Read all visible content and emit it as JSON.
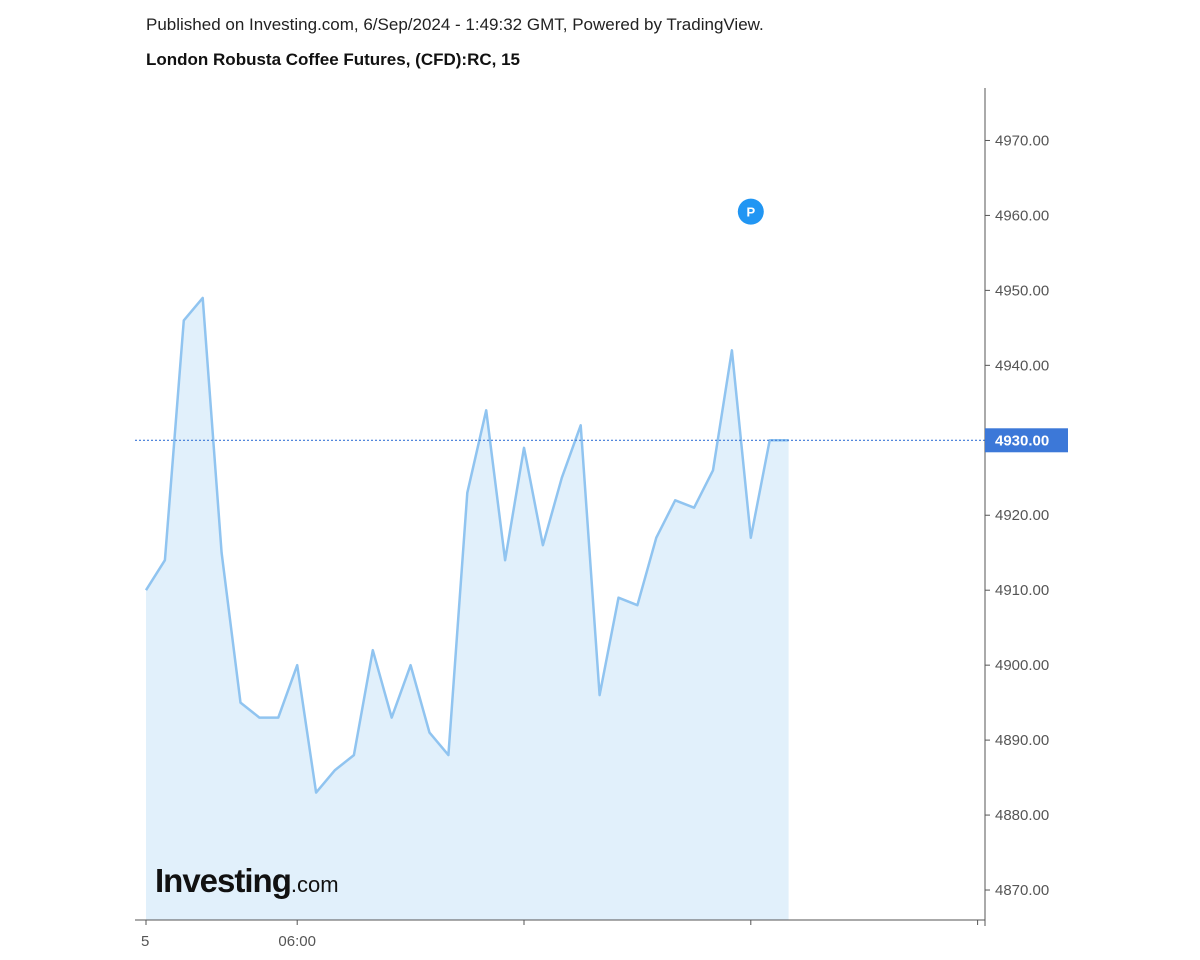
{
  "header": {
    "published": "Published on Investing.com, 6/Sep/2024 - 1:49:32 GMT, Powered by TradingView."
  },
  "logo": {
    "main": "Investing",
    "suffix": ".com"
  },
  "colors": {
    "line": "#90c4f0",
    "fill": "#e1f0fb",
    "last_price_bg": "#3c78d8",
    "marker": "#2196f3",
    "axis": "#555555"
  },
  "chart_data": {
    "type": "area",
    "title": "London Robusta Coffee Futures, (CFD):RC, 15",
    "y_ticks": [
      "4870.00",
      "4880.00",
      "4890.00",
      "4900.00",
      "4910.00",
      "4920.00",
      "4930.00",
      "4940.00",
      "4950.00",
      "4960.00",
      "4970.00"
    ],
    "ylim": [
      4866,
      4977
    ],
    "x_tick_labels": [
      {
        "index": 0,
        "label": "5"
      },
      {
        "index": 8,
        "label": "06:00"
      },
      {
        "index": 20,
        "label": ""
      },
      {
        "index": 32,
        "label": ""
      },
      {
        "index": 44,
        "label": ""
      }
    ],
    "x_slots": 45,
    "values": [
      4910,
      4914,
      4946,
      4949,
      4915,
      4895,
      4893,
      4893,
      4900,
      4883,
      4886,
      4888,
      4902,
      4893,
      4900,
      4891,
      4888,
      4923,
      4934,
      4914,
      4929,
      4916,
      4925,
      4932,
      4896,
      4909,
      4908,
      4917,
      4922,
      4921,
      4926,
      4942,
      4917,
      4930,
      4930
    ],
    "last_price": {
      "value": 4930,
      "label": "4930.00"
    },
    "marker": {
      "index": 32,
      "value": 4960.5,
      "label": "P"
    },
    "grid": false,
    "legend": "none"
  }
}
